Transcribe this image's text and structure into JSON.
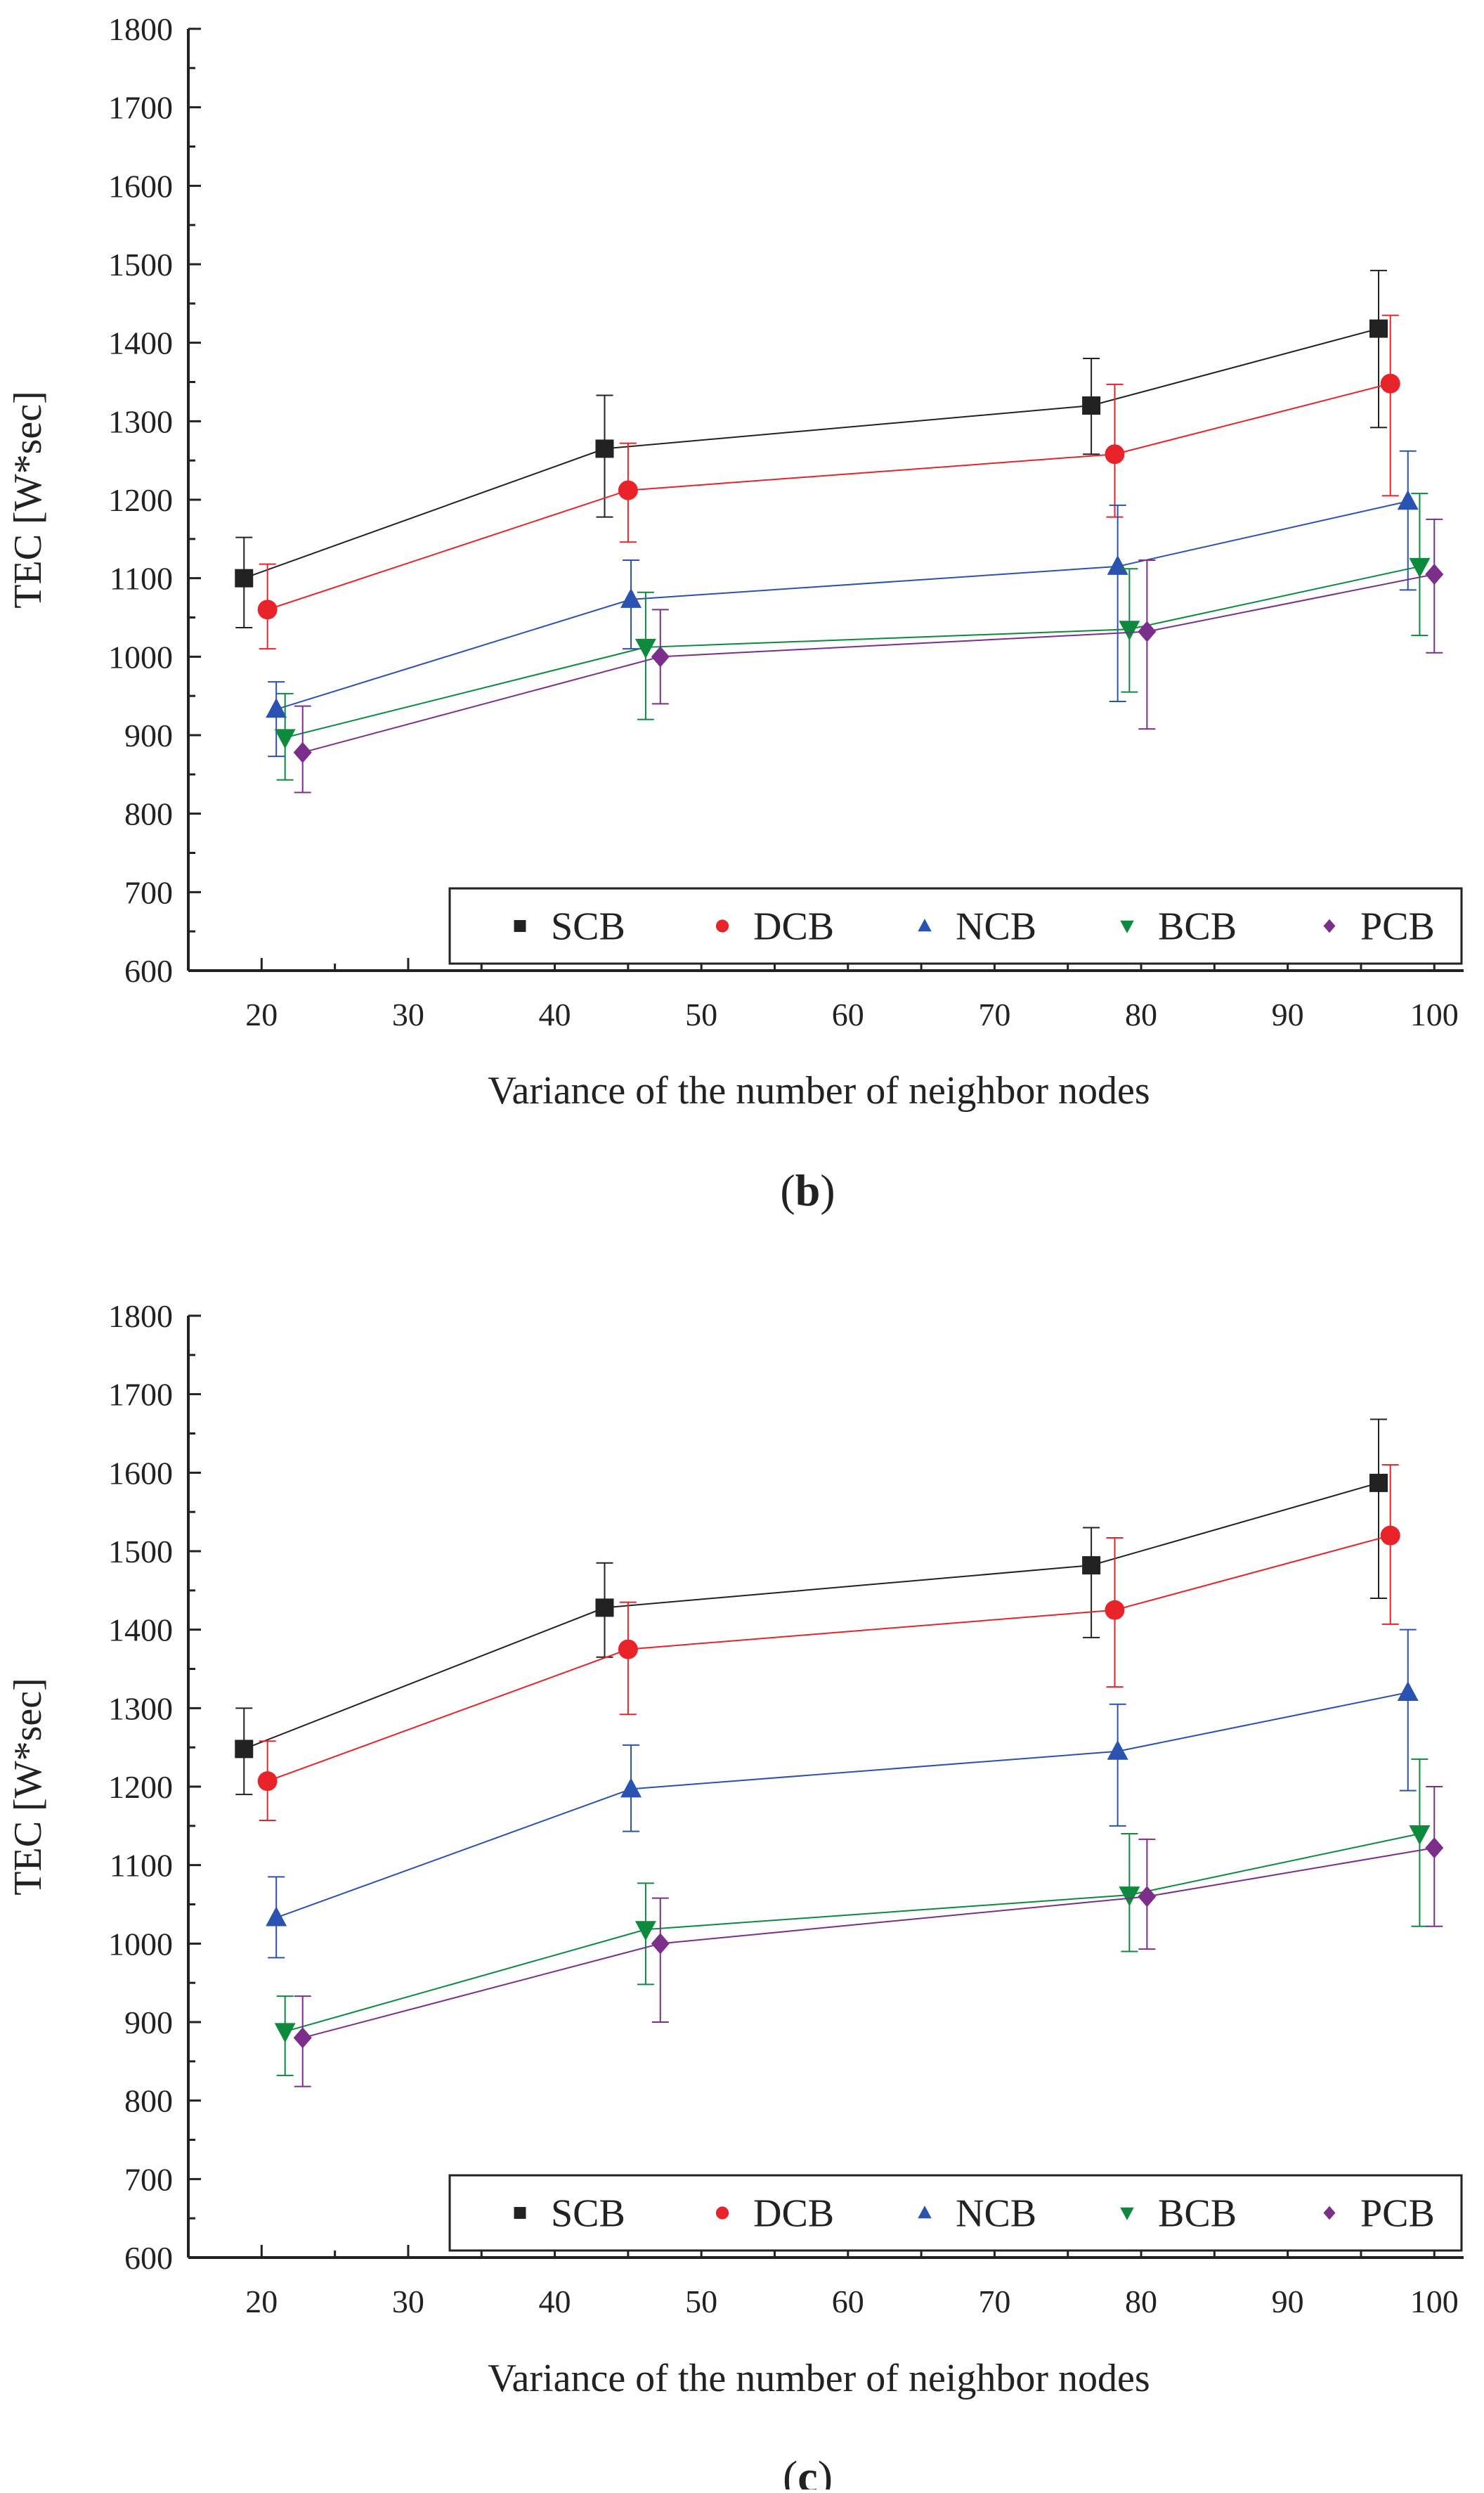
{
  "chart_data": [
    {
      "type": "line",
      "panel_label": "b",
      "xlabel": "Variance of the number of neighbor nodes",
      "ylabel": "TEC [W*sec]",
      "xlim": [
        15,
        102
      ],
      "ylim": [
        600,
        1800
      ],
      "xticks": [
        20,
        30,
        40,
        50,
        60,
        70,
        80,
        90,
        100
      ],
      "yticks": [
        600,
        700,
        800,
        900,
        1000,
        1100,
        1200,
        1300,
        1400,
        1500,
        1600,
        1700,
        1800
      ],
      "grid": false,
      "legend_position": "bottom-right",
      "series": [
        {
          "name": "SCB",
          "color": "#222222",
          "marker": "square",
          "x": [
            18.8,
            43.4,
            76.6,
            96.2
          ],
          "y": [
            1100,
            1265,
            1320,
            1418
          ],
          "err_low": [
            1037,
            1178,
            1258,
            1292
          ],
          "err_high": [
            1152,
            1333,
            1380,
            1492
          ]
        },
        {
          "name": "DCB",
          "color": "#e8232a",
          "marker": "circle",
          "x": [
            20.4,
            45.0,
            78.2,
            97.0
          ],
          "y": [
            1060,
            1212,
            1258,
            1348
          ],
          "err_low": [
            1010,
            1146,
            1178,
            1205
          ],
          "err_high": [
            1118,
            1272,
            1347,
            1435
          ]
        },
        {
          "name": "NCB",
          "color": "#2a52b0",
          "marker": "triangle-up",
          "x": [
            21.0,
            45.2,
            78.4,
            98.2
          ],
          "y": [
            933,
            1073,
            1115,
            1198
          ],
          "err_low": [
            873,
            1010,
            943,
            1085
          ],
          "err_high": [
            968,
            1123,
            1193,
            1262
          ]
        },
        {
          "name": "BCB",
          "color": "#0d8a3e",
          "marker": "triangle-down",
          "x": [
            21.6,
            46.2,
            79.2,
            99.0
          ],
          "y": [
            897,
            1012,
            1035,
            1115
          ],
          "err_low": [
            843,
            920,
            955,
            1027
          ],
          "err_high": [
            953,
            1082,
            1112,
            1208
          ]
        },
        {
          "name": "PCB",
          "color": "#7b2f8a",
          "marker": "diamond",
          "x": [
            22.8,
            47.2,
            80.4,
            100.0
          ],
          "y": [
            878,
            1000,
            1032,
            1105
          ],
          "err_low": [
            827,
            940,
            908,
            1005
          ],
          "err_high": [
            937,
            1060,
            1123,
            1175
          ]
        }
      ]
    },
    {
      "type": "line",
      "panel_label": "c",
      "xlabel": "Variance of the number of neighbor nodes",
      "ylabel": "TEC [W*sec]",
      "xlim": [
        15,
        102
      ],
      "ylim": [
        600,
        1800
      ],
      "xticks": [
        20,
        30,
        40,
        50,
        60,
        70,
        80,
        90,
        100
      ],
      "yticks": [
        600,
        700,
        800,
        900,
        1000,
        1100,
        1200,
        1300,
        1400,
        1500,
        1600,
        1700,
        1800
      ],
      "grid": false,
      "legend_position": "bottom-right",
      "series": [
        {
          "name": "SCB",
          "color": "#222222",
          "marker": "square",
          "x": [
            18.8,
            43.4,
            76.6,
            96.2
          ],
          "y": [
            1248,
            1428,
            1482,
            1587
          ],
          "err_low": [
            1190,
            1365,
            1390,
            1440
          ],
          "err_high": [
            1300,
            1485,
            1530,
            1668
          ]
        },
        {
          "name": "DCB",
          "color": "#e8232a",
          "marker": "circle",
          "x": [
            20.4,
            45.0,
            78.2,
            97.0
          ],
          "y": [
            1207,
            1375,
            1425,
            1520
          ],
          "err_low": [
            1157,
            1292,
            1327,
            1407
          ],
          "err_high": [
            1258,
            1435,
            1517,
            1610
          ]
        },
        {
          "name": "NCB",
          "color": "#2a52b0",
          "marker": "triangle-up",
          "x": [
            21.0,
            45.2,
            78.4,
            98.2
          ],
          "y": [
            1033,
            1197,
            1245,
            1320
          ],
          "err_low": [
            982,
            1143,
            1150,
            1195
          ],
          "err_high": [
            1085,
            1253,
            1305,
            1400
          ]
        },
        {
          "name": "BCB",
          "color": "#0d8a3e",
          "marker": "triangle-down",
          "x": [
            21.6,
            46.2,
            79.2,
            99.0
          ],
          "y": [
            888,
            1018,
            1062,
            1140
          ],
          "err_low": [
            832,
            948,
            990,
            1022
          ],
          "err_high": [
            933,
            1077,
            1140,
            1235
          ]
        },
        {
          "name": "PCB",
          "color": "#7b2f8a",
          "marker": "diamond",
          "x": [
            22.8,
            47.2,
            80.4,
            100.0
          ],
          "y": [
            880,
            1000,
            1060,
            1122
          ],
          "err_low": [
            818,
            900,
            993,
            1022
          ],
          "err_high": [
            933,
            1058,
            1133,
            1200
          ]
        }
      ]
    }
  ]
}
